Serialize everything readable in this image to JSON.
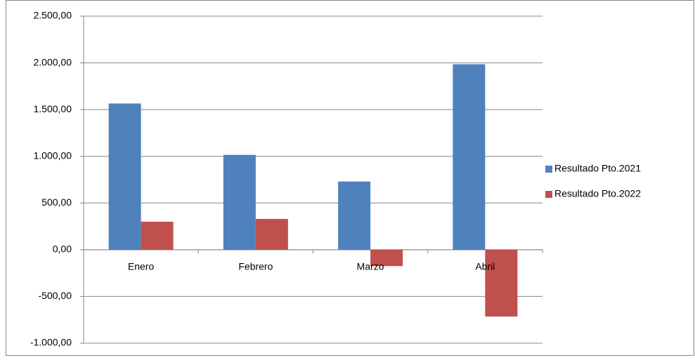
{
  "chart_data": {
    "type": "bar",
    "categories": [
      "Enero",
      "Febrero",
      "Marzo",
      "Abril"
    ],
    "series": [
      {
        "name": "Resultado Pto.2021",
        "color": "#4f81bd",
        "values": [
          1565,
          1015,
          730,
          1985
        ]
      },
      {
        "name": "Resultado Pto.2022",
        "color": "#c0504d",
        "values": [
          300,
          330,
          -175,
          -715
        ]
      }
    ],
    "ylim": [
      -1000,
      2500
    ],
    "yticks": [
      {
        "value": -1000,
        "label": "-1.000,00"
      },
      {
        "value": -500,
        "label": "-500,00"
      },
      {
        "value": 0,
        "label": "0,00"
      },
      {
        "value": 500,
        "label": "500,00"
      },
      {
        "value": 1000,
        "label": "1.000,00"
      },
      {
        "value": 1500,
        "label": "1.500,00"
      },
      {
        "value": 2000,
        "label": "2.000,00"
      },
      {
        "value": 2500,
        "label": "2.500,00"
      }
    ],
    "grid": true,
    "legend": "right"
  }
}
